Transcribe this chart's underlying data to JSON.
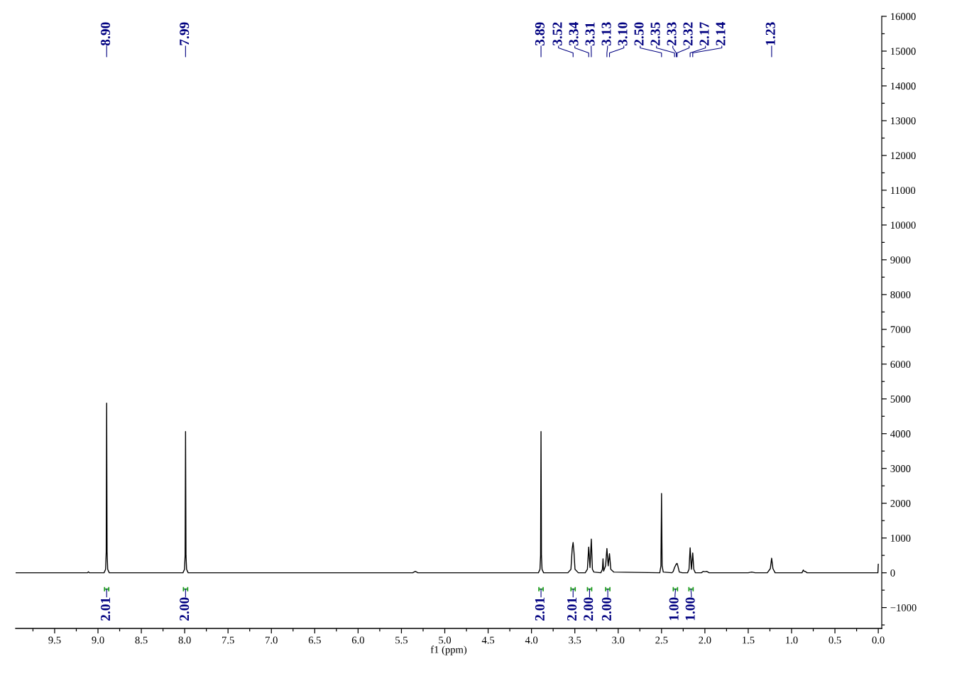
{
  "chart_data": {
    "type": "line",
    "xlabel": "f1 (ppm)",
    "x": [
      9.95,
      9.12,
      9.11,
      9.1,
      8.93,
      8.912,
      8.905,
      8.9,
      8.895,
      8.888,
      8.87,
      8.02,
      8.002,
      7.995,
      7.99,
      7.985,
      7.978,
      7.96,
      5.37,
      5.34,
      5.31,
      3.92,
      3.902,
      3.895,
      3.89,
      3.885,
      3.878,
      3.86,
      3.58,
      3.545,
      3.53,
      3.52,
      3.51,
      3.498,
      3.46,
      3.38,
      3.355,
      3.34,
      3.325,
      3.31,
      3.297,
      3.28,
      3.2,
      3.182,
      3.175,
      3.168,
      3.145,
      3.13,
      3.115,
      3.1,
      3.085,
      3.05,
      2.52,
      2.507,
      2.502,
      2.5,
      2.498,
      2.493,
      2.48,
      2.38,
      2.365,
      2.35,
      2.33,
      2.32,
      2.31,
      2.295,
      2.26,
      2.2,
      2.183,
      2.17,
      2.155,
      2.14,
      2.128,
      2.11,
      2.04,
      2.02,
      2.0,
      1.98,
      1.95,
      1.5,
      1.46,
      1.42,
      1.28,
      1.245,
      1.23,
      1.215,
      1.19,
      0.88,
      0.865,
      0.855,
      0.845,
      0.82,
      0.004,
      0.0
    ],
    "series": [
      {
        "color": "#000000",
        "values": [
          0,
          0,
          30,
          0,
          0,
          100,
          600,
          4880,
          600,
          100,
          0,
          0,
          100,
          500,
          4060,
          500,
          100,
          0,
          0,
          40,
          0,
          0,
          100,
          500,
          4060,
          500,
          100,
          0,
          0,
          100,
          700,
          870,
          600,
          100,
          0,
          0,
          100,
          740,
          150,
          970,
          100,
          20,
          0,
          100,
          400,
          50,
          200,
          700,
          200,
          550,
          100,
          20,
          0,
          200,
          1600,
          2280,
          1600,
          200,
          20,
          0,
          40,
          150,
          250,
          270,
          180,
          20,
          0,
          0,
          100,
          720,
          100,
          570,
          100,
          0,
          0,
          40,
          30,
          40,
          0,
          0,
          20,
          0,
          0,
          120,
          420,
          120,
          0,
          0,
          80,
          40,
          40,
          0,
          0,
          250
        ]
      }
    ],
    "xlim": [
      9.95,
      -0.04
    ],
    "ylim": [
      -1600,
      16000
    ],
    "xticks": [
      {
        "value": 0,
        "label": "0.0"
      },
      {
        "value": 0.25,
        "label": null
      },
      {
        "value": 0.5,
        "label": "0.5"
      },
      {
        "value": 0.75,
        "label": null
      },
      {
        "value": 1,
        "label": "1.0"
      },
      {
        "value": 1.25,
        "label": null
      },
      {
        "value": 1.5,
        "label": "1.5"
      },
      {
        "value": 1.75,
        "label": null
      },
      {
        "value": 2,
        "label": "2.0"
      },
      {
        "value": 2.25,
        "label": null
      },
      {
        "value": 2.5,
        "label": "2.5"
      },
      {
        "value": 2.75,
        "label": null
      },
      {
        "value": 3,
        "label": "3.0"
      },
      {
        "value": 3.25,
        "label": null
      },
      {
        "value": 3.5,
        "label": "3.5"
      },
      {
        "value": 3.75,
        "label": null
      },
      {
        "value": 4,
        "label": "4.0"
      },
      {
        "value": 4.25,
        "label": null
      },
      {
        "value": 4.5,
        "label": "4.5"
      },
      {
        "value": 4.75,
        "label": null
      },
      {
        "value": 5,
        "label": "5.0"
      },
      {
        "value": 5.25,
        "label": null
      },
      {
        "value": 5.5,
        "label": "5.5"
      },
      {
        "value": 5.75,
        "label": null
      },
      {
        "value": 6,
        "label": "6.0"
      },
      {
        "value": 6.25,
        "label": null
      },
      {
        "value": 6.5,
        "label": "6.5"
      },
      {
        "value": 6.75,
        "label": null
      },
      {
        "value": 7,
        "label": "7.0"
      },
      {
        "value": 7.25,
        "label": null
      },
      {
        "value": 7.5,
        "label": "7.5"
      },
      {
        "value": 7.75,
        "label": null
      },
      {
        "value": 8,
        "label": "8.0"
      },
      {
        "value": 8.25,
        "label": null
      },
      {
        "value": 8.5,
        "label": "8.5"
      },
      {
        "value": 8.75,
        "label": null
      },
      {
        "value": 9,
        "label": "9.0"
      },
      {
        "value": 9.25,
        "label": null
      },
      {
        "value": 9.5,
        "label": "9.5"
      },
      {
        "value": 9.75,
        "label": null
      }
    ],
    "yticks": [
      {
        "value": -1500,
        "label": null
      },
      {
        "value": -1000,
        "label": "−1000"
      },
      {
        "value": -500,
        "label": null
      },
      0,
      {
        "value": 500,
        "label": null
      },
      1000,
      {
        "value": 1500,
        "label": null
      },
      2000,
      {
        "value": 2500,
        "label": null
      },
      3000,
      {
        "value": 3500,
        "label": null
      },
      4000,
      {
        "value": 4500,
        "label": null
      },
      5000,
      {
        "value": 5500,
        "label": null
      },
      6000,
      {
        "value": 6500,
        "label": null
      },
      7000,
      {
        "value": 7500,
        "label": null
      },
      8000,
      {
        "value": 8500,
        "label": null
      },
      9000,
      {
        "value": 9500,
        "label": null
      },
      10000,
      {
        "value": 10500,
        "label": null
      },
      11000,
      {
        "value": 11500,
        "label": null
      },
      12000,
      {
        "value": 12500,
        "label": null
      },
      13000,
      {
        "value": 13500,
        "label": null
      },
      14000,
      {
        "value": 14500,
        "label": null
      },
      15000,
      {
        "value": 15500,
        "label": null
      },
      16000
    ],
    "annotations": [
      {
        "text": "8.90",
        "x": 8.9
      },
      {
        "text": "7.99",
        "x": 7.99
      },
      {
        "text": "3.89",
        "x": 3.89
      },
      {
        "text": "3.52",
        "x": 3.52
      },
      {
        "text": "3.34",
        "x": 3.34
      },
      {
        "text": "3.31",
        "x": 3.31
      },
      {
        "text": "3.13",
        "x": 3.13
      },
      {
        "text": "3.10",
        "x": 3.1
      },
      {
        "text": "2.50",
        "x": 2.5
      },
      {
        "text": "2.35",
        "x": 2.35
      },
      {
        "text": "2.33",
        "x": 2.33
      },
      {
        "text": "2.32",
        "x": 2.32
      },
      {
        "text": "2.17",
        "x": 2.17
      },
      {
        "text": "2.14",
        "x": 2.14
      },
      {
        "text": "1.23",
        "x": 1.23
      },
      {
        "text": "2.01",
        "x": 8.9,
        "y": -470
      },
      {
        "text": "2.00",
        "x": 7.99,
        "y": -470
      },
      {
        "text": "2.01",
        "x": 3.89,
        "y": -470
      },
      {
        "text": "2.01",
        "x": 3.52,
        "y": -470
      },
      {
        "text": "2.00",
        "x": 3.33,
        "y": -470
      },
      {
        "text": "2.00",
        "x": 3.12,
        "y": -470
      },
      {
        "text": "1.00",
        "x": 2.34,
        "y": -470
      },
      {
        "text": "1.00",
        "x": 2.16,
        "y": -470
      }
    ]
  }
}
